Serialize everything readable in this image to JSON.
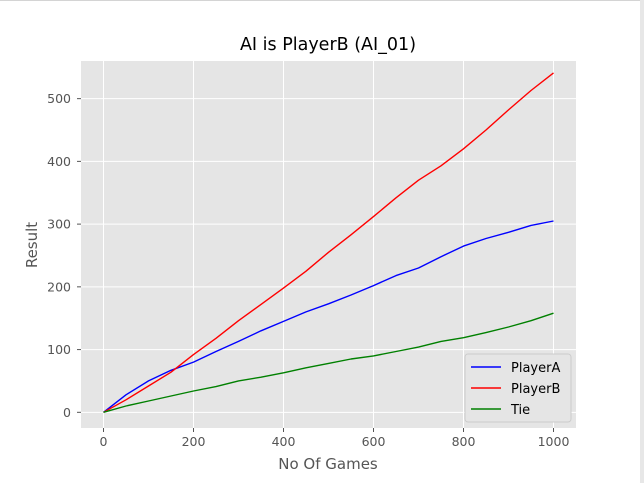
{
  "chart_data": {
    "type": "line",
    "title": "AI is PlayerB (AI_01)",
    "xlabel": "No Of Games",
    "ylabel": "Result",
    "xlim": [
      -50,
      1050
    ],
    "ylim": [
      -25,
      560
    ],
    "xticks": [
      0,
      200,
      400,
      600,
      800,
      1000
    ],
    "yticks": [
      0,
      100,
      200,
      300,
      400,
      500
    ],
    "grid": true,
    "legend_position": "lower-right",
    "series": [
      {
        "name": "PlayerA",
        "color": "#0000ff",
        "x": [
          0,
          50,
          100,
          150,
          200,
          250,
          300,
          350,
          400,
          450,
          500,
          550,
          600,
          650,
          700,
          750,
          800,
          850,
          900,
          950,
          1000
        ],
        "y": [
          0,
          28,
          50,
          67,
          80,
          97,
          113,
          130,
          145,
          160,
          173,
          187,
          202,
          218,
          230,
          248,
          265,
          277,
          287,
          298,
          305
        ]
      },
      {
        "name": "PlayerB",
        "color": "#ff0000",
        "x": [
          0,
          50,
          100,
          150,
          200,
          250,
          300,
          350,
          400,
          450,
          500,
          550,
          600,
          650,
          700,
          750,
          800,
          850,
          900,
          950,
          1000
        ],
        "y": [
          0,
          20,
          42,
          64,
          92,
          118,
          146,
          172,
          198,
          225,
          255,
          283,
          312,
          342,
          370,
          393,
          420,
          450,
          482,
          513,
          541
        ]
      },
      {
        "name": "Tie",
        "color": "#008000",
        "x": [
          0,
          50,
          100,
          150,
          200,
          250,
          300,
          350,
          400,
          450,
          500,
          550,
          600,
          650,
          700,
          750,
          800,
          850,
          900,
          950,
          1000
        ],
        "y": [
          0,
          10,
          18,
          26,
          34,
          41,
          50,
          56,
          63,
          71,
          78,
          85,
          90,
          97,
          104,
          113,
          119,
          127,
          136,
          146,
          158
        ]
      }
    ]
  }
}
